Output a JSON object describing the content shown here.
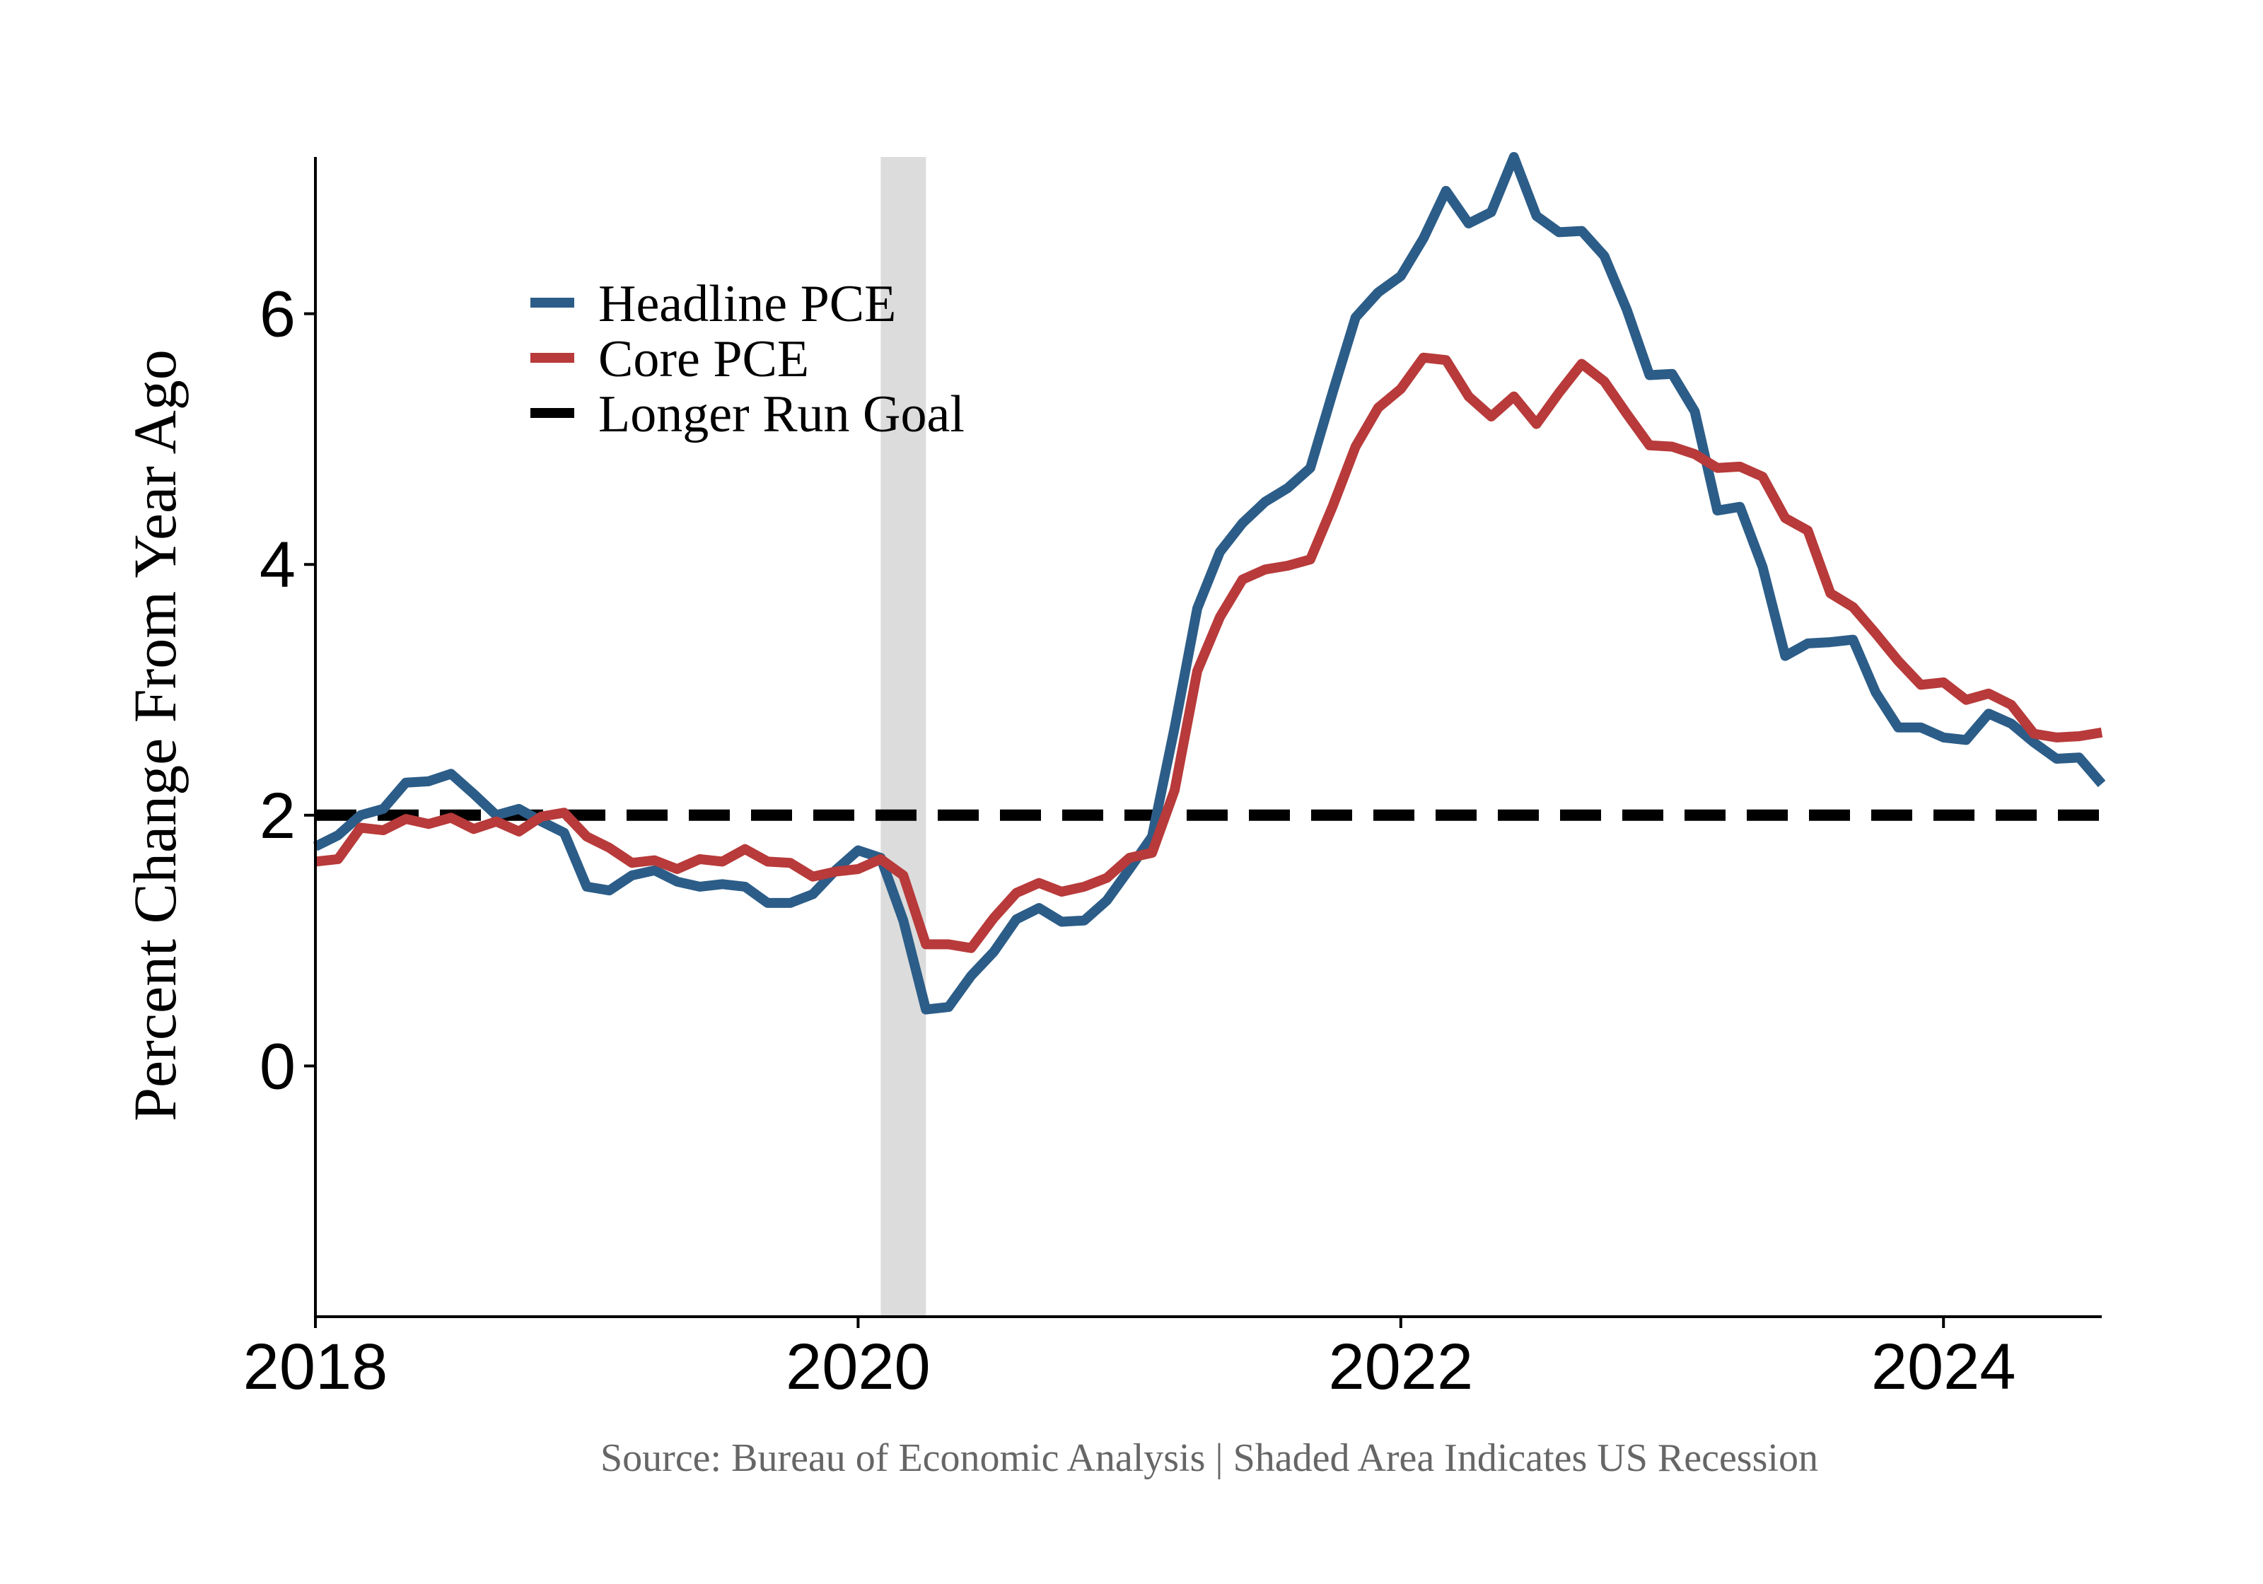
{
  "chart_data": {
    "type": "line",
    "title": "",
    "xlabel": "",
    "ylabel": "Percent Change From Year Ago",
    "caption": "Source: Bureau of Economic Analysis | Shaded Area Indicates US Recession",
    "xlim": [
      2018.0,
      2024.5833
    ],
    "ylim": [
      -2.0,
      7.25
    ],
    "x_ticks": [
      2018,
      2020,
      2022,
      2024
    ],
    "y_ticks": [
      0,
      2,
      4,
      6
    ],
    "grid": false,
    "legend_position": "top-left",
    "recession": {
      "start": 2020.0833,
      "end": 2020.25
    },
    "goal": {
      "name": "Longer Run Goal",
      "value": 2,
      "color": "#000000",
      "style": "dashed"
    },
    "colors": {
      "headline": "#2C5D88",
      "core": "#B83A3A",
      "recession": "#DCDCDC"
    },
    "series": [
      {
        "name": "Headline PCE",
        "color": "#2C5D88",
        "start": 2018.0,
        "step_months": 1,
        "values": [
          1.75,
          1.84,
          2.0,
          2.05,
          2.26,
          2.27,
          2.33,
          2.17,
          2.0,
          2.05,
          1.95,
          1.86,
          1.43,
          1.4,
          1.52,
          1.56,
          1.47,
          1.43,
          1.45,
          1.43,
          1.3,
          1.3,
          1.37,
          1.56,
          1.72,
          1.66,
          1.16,
          0.45,
          0.47,
          0.72,
          0.91,
          1.17,
          1.26,
          1.15,
          1.16,
          1.32,
          1.57,
          1.83,
          2.7,
          3.65,
          4.1,
          4.33,
          4.5,
          4.61,
          4.77,
          5.38,
          5.97,
          6.17,
          6.3,
          6.6,
          6.98,
          6.72,
          6.81,
          7.25,
          6.78,
          6.65,
          6.66,
          6.46,
          6.03,
          5.51,
          5.52,
          5.22,
          4.43,
          4.46,
          3.98,
          3.27,
          3.37,
          3.38,
          3.4,
          2.98,
          2.7,
          2.7,
          2.62,
          2.6,
          2.81,
          2.73,
          2.58,
          2.45,
          2.46,
          2.25
        ]
      },
      {
        "name": "Core PCE",
        "color": "#B83A3A",
        "start": 2018.0,
        "step_months": 1,
        "values": [
          1.63,
          1.65,
          1.9,
          1.88,
          1.97,
          1.93,
          1.98,
          1.89,
          1.95,
          1.87,
          1.99,
          2.02,
          1.83,
          1.74,
          1.62,
          1.64,
          1.57,
          1.65,
          1.63,
          1.73,
          1.63,
          1.62,
          1.51,
          1.55,
          1.57,
          1.65,
          1.52,
          0.97,
          0.97,
          0.94,
          1.18,
          1.38,
          1.46,
          1.39,
          1.43,
          1.5,
          1.66,
          1.7,
          2.2,
          3.15,
          3.58,
          3.88,
          3.96,
          3.99,
          4.04,
          4.47,
          4.94,
          5.25,
          5.4,
          5.65,
          5.63,
          5.34,
          5.18,
          5.34,
          5.12,
          5.37,
          5.6,
          5.46,
          5.2,
          4.95,
          4.94,
          4.88,
          4.77,
          4.78,
          4.7,
          4.37,
          4.27,
          3.77,
          3.66,
          3.45,
          3.23,
          3.04,
          3.06,
          2.92,
          2.97,
          2.88,
          2.65,
          2.62,
          2.63,
          2.66
        ]
      }
    ]
  }
}
